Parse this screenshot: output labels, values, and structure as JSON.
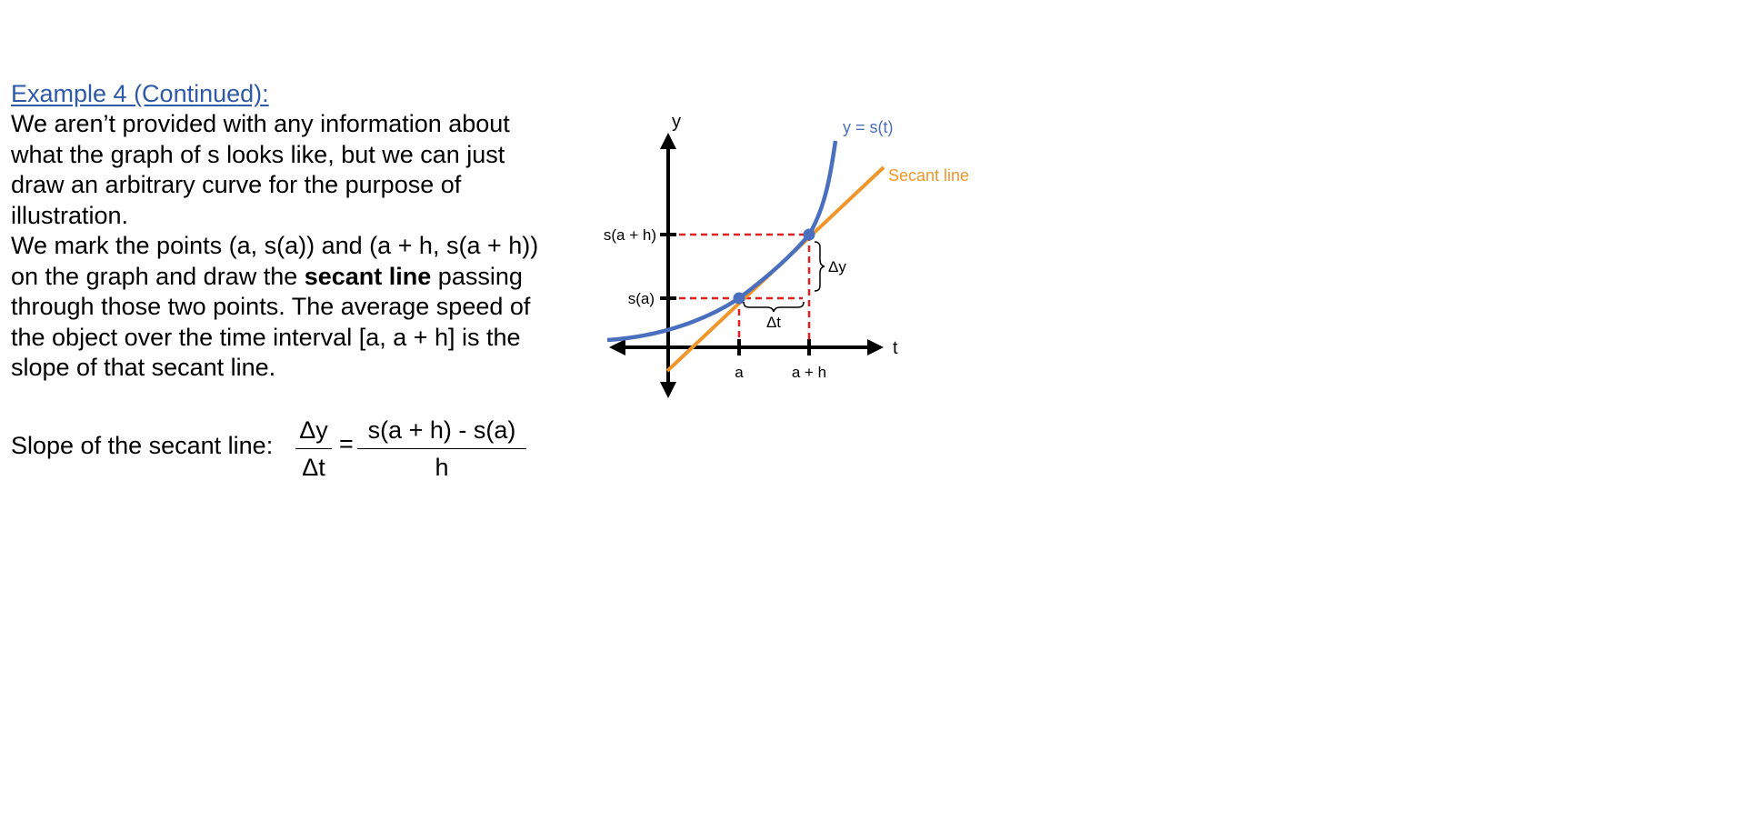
{
  "heading": {
    "title": "Example 4 (Continued):",
    "color": "#2f5aa8"
  },
  "paragraph_1": {
    "lines": [
      "We aren’t provided with any information about",
      "what the graph of s looks like, but we can just",
      "draw an arbitrary curve for the purpose of",
      "illustration."
    ]
  },
  "paragraph_2": {
    "line_1": "We mark the points (a, s(a)) and (a + h, s(a + h))",
    "line_2_before": "on the graph and draw the ",
    "line_2_bold": "secant line",
    "line_2_after": " passing",
    "line_3": "through those two points.  The average speed of",
    "line_4": "the object over the time interval [a, a + h] is the",
    "line_5": "slope of that secant line."
  },
  "formula": {
    "label": "Slope of the secant line:",
    "numerator_1": "Δy",
    "denominator_1": "Δt",
    "equals": "=",
    "numerator_2": "s(a + h) - s(a)",
    "denominator_2": "h"
  },
  "graph": {
    "y_axis_label": "y",
    "t_axis_label": "t",
    "curve_label": "y = s(t)",
    "secant_label": "Secant line",
    "tick_sah": "s(a + h)",
    "tick_sa": "s(a)",
    "tick_a": "a",
    "tick_ah": "a + h",
    "delta_y": "Δy",
    "delta_t": "Δt",
    "colors": {
      "curve": "#4a6fbf",
      "secant": "#f0962a",
      "guide": "#e02020",
      "point": "#4a6fbf",
      "axis": "#000000"
    }
  }
}
